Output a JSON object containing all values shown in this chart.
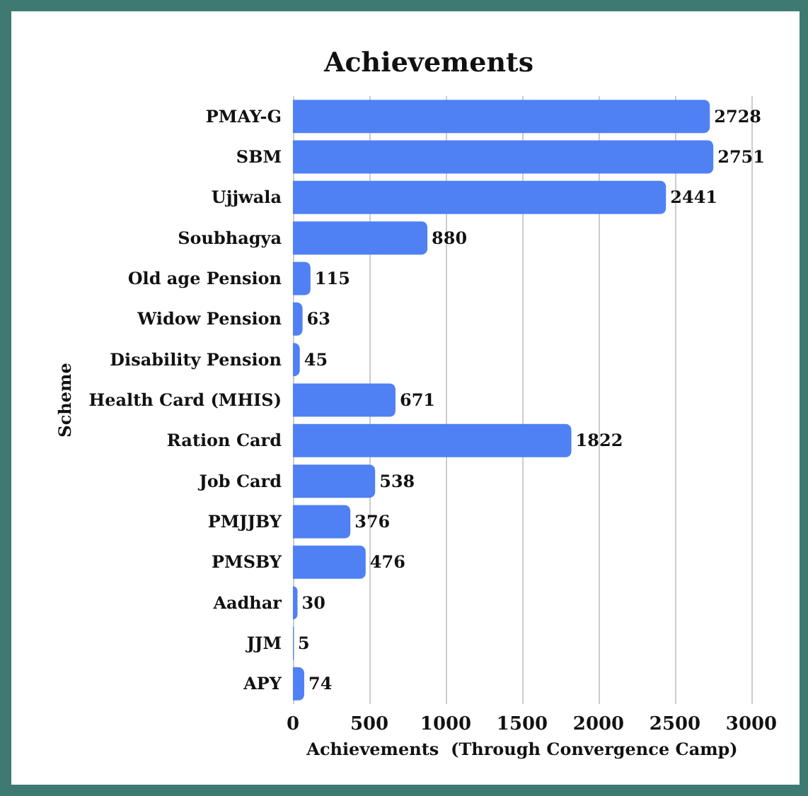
{
  "chart_data": {
    "type": "bar",
    "orientation": "horizontal",
    "title": "Achievements",
    "xlabel": "Achievements  (Through Convergence Camp)",
    "ylabel": "Scheme",
    "categories": [
      "PMAY-G",
      "SBM",
      "Ujjwala",
      "Soubhagya",
      "Old age Pension",
      "Widow Pension",
      "Disability Pension",
      "Health Card (MHIS)",
      "Ration Card",
      "Job Card",
      "PMJJBY",
      "PMSBY",
      "Aadhar",
      "JJM",
      "APY"
    ],
    "values": [
      2728,
      2751,
      2441,
      880,
      115,
      63,
      45,
      671,
      1822,
      538,
      376,
      476,
      30,
      5,
      74
    ],
    "color": "#4f81f4",
    "xlim": [
      0,
      3000
    ],
    "xticks": [
      0,
      500,
      1000,
      1500,
      2000,
      2500,
      3000
    ],
    "grid": "x",
    "data_labels": true
  }
}
